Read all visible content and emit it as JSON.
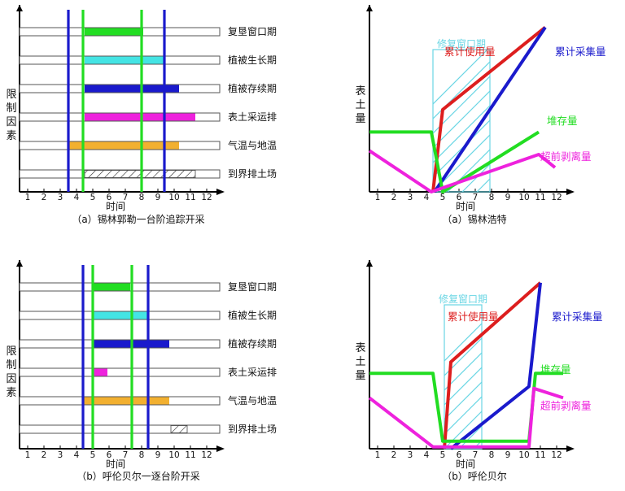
{
  "colors": {
    "green": "#22dd22",
    "cyan": "#44e4e4",
    "blue": "#1a1acc",
    "magenta": "#ee22dd",
    "orange": "#f2b030",
    "red": "#dd1e1e",
    "hatch": "#6ad6e4",
    "axis": "#000000"
  },
  "chart_data": [
    {
      "id": "a-left",
      "type": "gantt",
      "caption": "（a）锡林郭勒一台阶追踪开采",
      "ylabel": "限制因素",
      "xlabel": "时间",
      "x_ticks": [
        1,
        2,
        3,
        4,
        5,
        6,
        7,
        8,
        9,
        10,
        11,
        12
      ],
      "xlim": [
        0.5,
        12.8
      ],
      "rows": [
        {
          "label": "复垦窗口期",
          "bar": [
            4.5,
            8.1
          ],
          "color": "green"
        },
        {
          "label": "植被生长期",
          "bar": [
            4.5,
            9.4
          ],
          "color": "cyan"
        },
        {
          "label": "植被存续期",
          "bar": [
            4.5,
            10.3
          ],
          "color": "blue"
        },
        {
          "label": "表土采运排",
          "bar": [
            4.5,
            11.3
          ],
          "color": "magenta"
        },
        {
          "label": "气温与地温",
          "bar": [
            3.5,
            10.3
          ],
          "color": "orange"
        },
        {
          "label": "到界排土场",
          "bar": [
            4.5,
            11.3
          ],
          "color": "hatch"
        }
      ],
      "vlines": [
        {
          "x": 3.5,
          "color": "blue"
        },
        {
          "x": 4.4,
          "color": "green"
        },
        {
          "x": 8.0,
          "color": "green"
        },
        {
          "x": 9.4,
          "color": "blue"
        }
      ]
    },
    {
      "id": "a-right",
      "type": "line",
      "caption": "（a）锡林浩特",
      "ylabel": "表土量",
      "xlabel": "时间",
      "x_ticks": [
        1,
        2,
        3,
        4,
        5,
        6,
        7,
        8,
        9,
        10,
        11,
        12
      ],
      "xlim": [
        0.5,
        12.8
      ],
      "window": {
        "label": "修复窗口期",
        "x": [
          4.4,
          7.9
        ]
      },
      "series": [
        {
          "name": "累计使用量",
          "color": "red",
          "points": [
            [
              4.4,
              0
            ],
            [
              5.0,
              44
            ],
            [
              11.3,
              88
            ]
          ],
          "label_at": [
            5.1,
            73
          ]
        },
        {
          "name": "累计采集量",
          "color": "blue",
          "points": [
            [
              4.5,
              0
            ],
            [
              11.3,
              88
            ]
          ],
          "label_at": [
            11.9,
            73
          ]
        },
        {
          "name": "堆存量",
          "color": "green",
          "points": [
            [
              0.5,
              32
            ],
            [
              4.3,
              32
            ],
            [
              5.0,
              0
            ],
            [
              10.9,
              32
            ]
          ],
          "label_at": [
            11.4,
            36
          ]
        },
        {
          "name": "超前剥离量",
          "color": "magenta",
          "points": [
            [
              0.5,
              22
            ],
            [
              4.3,
              0
            ],
            [
              10.9,
              20
            ],
            [
              11.9,
              13
            ]
          ],
          "label_at": [
            11.0,
            17
          ]
        }
      ]
    },
    {
      "id": "b-left",
      "type": "gantt",
      "caption": "（b）呼伦贝尔一逐台阶开采",
      "ylabel": "限制因素",
      "xlabel": "时间",
      "x_ticks": [
        1,
        2,
        3,
        4,
        5,
        6,
        7,
        8,
        9,
        10,
        11,
        12
      ],
      "xlim": [
        0.5,
        12.8
      ],
      "rows": [
        {
          "label": "复垦窗口期",
          "bar": [
            5.0,
            7.3
          ],
          "color": "green"
        },
        {
          "label": "植被生长期",
          "bar": [
            5.0,
            8.4
          ],
          "color": "cyan"
        },
        {
          "label": "植被存续期",
          "bar": [
            5.0,
            9.7
          ],
          "color": "blue"
        },
        {
          "label": "表土采运排",
          "bar": [
            5.0,
            5.9
          ],
          "color": "magenta"
        },
        {
          "label": "气温与地温",
          "bar": [
            4.4,
            9.7
          ],
          "color": "orange"
        },
        {
          "label": "到界排土场",
          "bar": [
            9.8,
            10.8
          ],
          "color": "hatch"
        }
      ],
      "vlines": [
        {
          "x": 4.4,
          "color": "blue"
        },
        {
          "x": 5.0,
          "color": "green"
        },
        {
          "x": 7.4,
          "color": "green"
        },
        {
          "x": 8.4,
          "color": "blue"
        }
      ]
    },
    {
      "id": "b-right",
      "type": "line",
      "caption": "（b）呼伦贝尔",
      "ylabel": "表土量",
      "xlabel": "时间",
      "x_ticks": [
        1,
        2,
        3,
        4,
        5,
        6,
        7,
        8,
        9,
        10,
        11,
        12
      ],
      "xlim": [
        0.5,
        12.8
      ],
      "window": {
        "label": "修复窗口期",
        "x": [
          5.1,
          7.4
        ]
      },
      "series": [
        {
          "name": "累计使用量",
          "color": "red",
          "points": [
            [
              5.1,
              0
            ],
            [
              5.5,
              46
            ],
            [
              11.0,
              88
            ]
          ],
          "label_at": [
            5.3,
            68
          ]
        },
        {
          "name": "累计采集量",
          "color": "blue",
          "points": [
            [
              5.5,
              0
            ],
            [
              10.3,
              33
            ],
            [
              11.0,
              88
            ]
          ],
          "label_at": [
            11.7,
            68
          ]
        },
        {
          "name": "堆存量",
          "color": "green",
          "points": [
            [
              0.5,
              40
            ],
            [
              4.4,
              40
            ],
            [
              5.0,
              4
            ],
            [
              10.3,
              4
            ],
            [
              10.7,
              40
            ],
            [
              12.4,
              40
            ]
          ],
          "label_at": [
            11.0,
            40
          ]
        },
        {
          "name": "超前剥离量",
          "color": "magenta",
          "points": [
            [
              0.5,
              27
            ],
            [
              4.4,
              1
            ],
            [
              10.3,
              1
            ],
            [
              10.6,
              32
            ],
            [
              12.4,
              27
            ]
          ],
          "label_at": [
            11.0,
            21
          ]
        }
      ]
    }
  ]
}
